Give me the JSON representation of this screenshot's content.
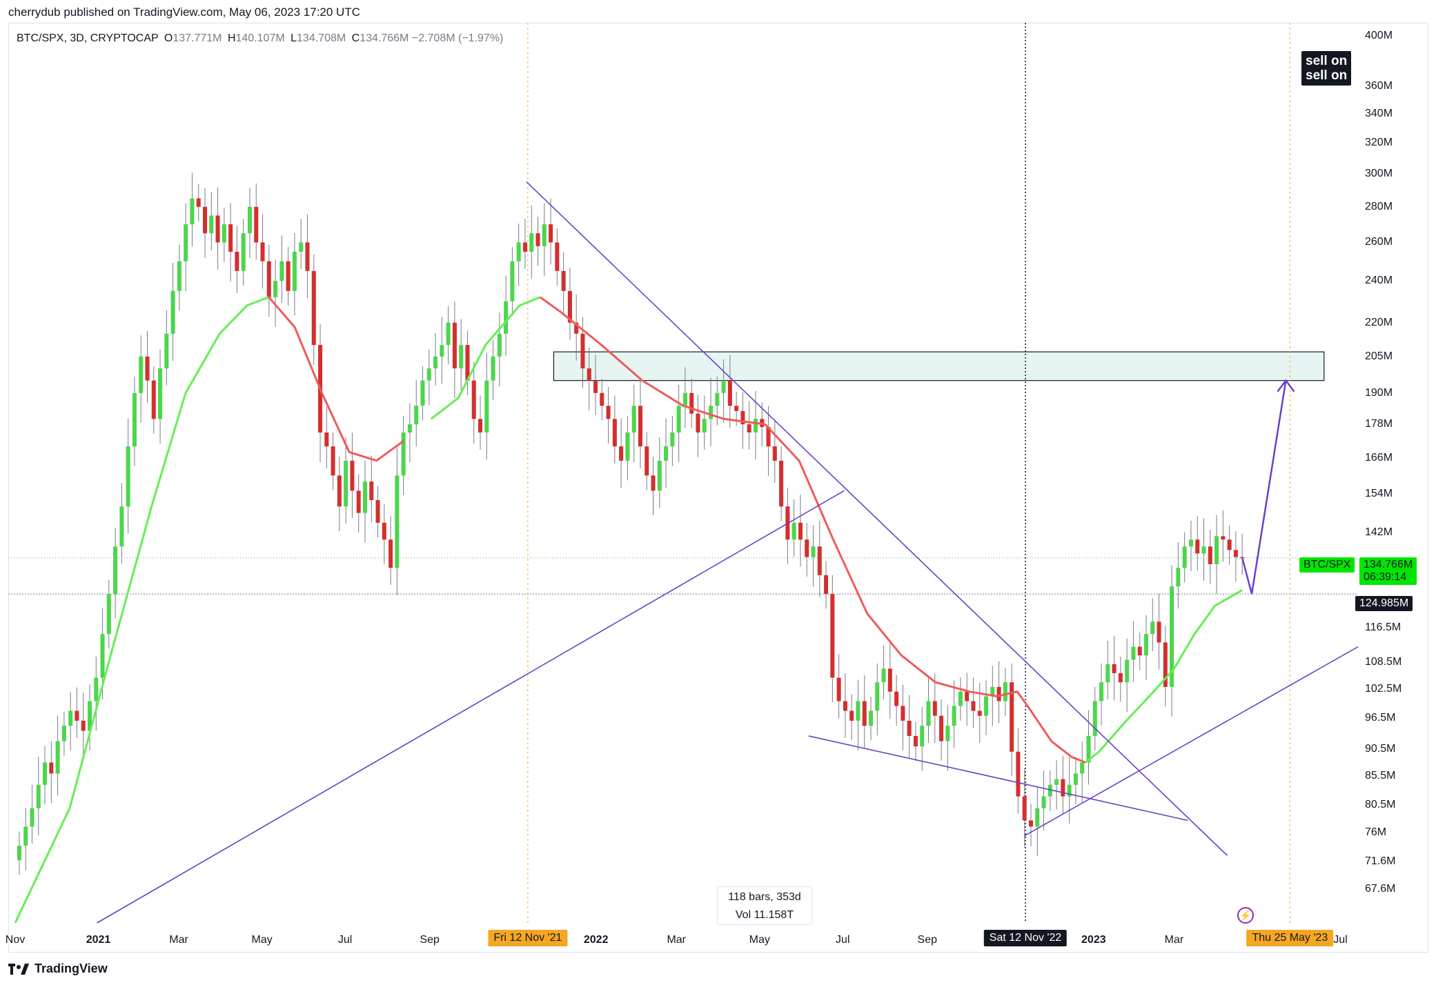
{
  "header": {
    "publisher": "cherrydub published on TradingView.com, May 06, 2023 17:20 UTC"
  },
  "legend": {
    "symbol": "BTC/SPX, 3D, CRYPTOCAP",
    "o_label": "O",
    "o_value": "137.771M",
    "h_label": "H",
    "h_value": "140.107M",
    "l_label": "L",
    "l_value": "134.708M",
    "c_label": "C",
    "c_value": "134.766M",
    "change": "−2.708M (−1.97%)"
  },
  "badges": {
    "sell_on_1": "sell on",
    "sell_on_2": "sell on"
  },
  "price_tags": {
    "symbol_label": "BTC/SPX",
    "last_price": "134.766M",
    "countdown": "06:39:14",
    "crosshair_price": "124.985M"
  },
  "stats": {
    "bars": "118 bars, 353d",
    "volume": "Vol 11.158T"
  },
  "footer": {
    "brand": "TradingView"
  },
  "colors": {
    "up": "#4cd64c",
    "down": "#d32f2f",
    "ema_down": "#f05a5a",
    "ema_up": "#66ee55",
    "trendline": "#6a3fc8",
    "zone_fill": "#e6f5f1",
    "orange": "#f5a623"
  },
  "chart_data": {
    "type": "candlestick",
    "symbol": "BTC/SPX",
    "interval": "3D",
    "scale": "log",
    "unit": "M",
    "y_range": [
      63,
      405
    ],
    "y_ticks": [
      {
        "value": 400,
        "label": "400M"
      },
      {
        "value": 360,
        "label": "360M"
      },
      {
        "value": 340,
        "label": "340M"
      },
      {
        "value": 320,
        "label": "320M"
      },
      {
        "value": 300,
        "label": "300M"
      },
      {
        "value": 280,
        "label": "280M"
      },
      {
        "value": 260,
        "label": "260M"
      },
      {
        "value": 240,
        "label": "240M"
      },
      {
        "value": 220,
        "label": "220M"
      },
      {
        "value": 205,
        "label": "205M"
      },
      {
        "value": 190,
        "label": "190M"
      },
      {
        "value": 178,
        "label": "178M"
      },
      {
        "value": 166,
        "label": "166M"
      },
      {
        "value": 154,
        "label": "154M"
      },
      {
        "value": 142,
        "label": "142M"
      },
      {
        "value": 116.5,
        "label": "116.5M"
      },
      {
        "value": 108.5,
        "label": "108.5M"
      },
      {
        "value": 102.5,
        "label": "102.5M"
      },
      {
        "value": 96.5,
        "label": "96.5M"
      },
      {
        "value": 90.5,
        "label": "90.5M"
      },
      {
        "value": 85.5,
        "label": "85.5M"
      },
      {
        "value": 80.5,
        "label": "80.5M"
      },
      {
        "value": 76,
        "label": "76M"
      },
      {
        "value": 71.6,
        "label": "71.6M"
      },
      {
        "value": 67.6,
        "label": "67.6M"
      }
    ],
    "x_range_days": [
      0,
      990
    ],
    "x_origin_date": "2020-11-01",
    "x_ticks": [
      {
        "day": 0,
        "label": "Nov",
        "bold": false
      },
      {
        "day": 61,
        "label": "2021",
        "bold": true
      },
      {
        "day": 120,
        "label": "Mar",
        "bold": false
      },
      {
        "day": 181,
        "label": "May",
        "bold": false
      },
      {
        "day": 242,
        "label": "Jul",
        "bold": false
      },
      {
        "day": 304,
        "label": "Sep",
        "bold": false
      },
      {
        "day": 426,
        "label": "2022",
        "bold": true
      },
      {
        "day": 485,
        "label": "Mar",
        "bold": false
      },
      {
        "day": 546,
        "label": "May",
        "bold": false
      },
      {
        "day": 607,
        "label": "Jul",
        "bold": false
      },
      {
        "day": 669,
        "label": "Sep",
        "bold": false
      },
      {
        "day": 791,
        "label": "2023",
        "bold": true
      },
      {
        "day": 850,
        "label": "Mar",
        "bold": false
      },
      {
        "day": 972,
        "label": "Jul",
        "bold": false
      }
    ],
    "highlighted_dates": [
      {
        "day": 376,
        "label": "Fri 12 Nov '21",
        "style": "orange"
      },
      {
        "day": 741,
        "label": "Sat 12 Nov '22",
        "style": "black"
      },
      {
        "day": 935,
        "label": "Thu 25 May '23",
        "style": "orange"
      }
    ],
    "candles_closes": [
      74,
      77,
      80,
      84,
      88,
      86,
      92,
      95,
      98,
      96,
      94,
      100,
      105,
      115,
      125,
      138,
      150,
      170,
      190,
      205,
      195,
      180,
      200,
      215,
      235,
      250,
      270,
      285,
      280,
      265,
      275,
      260,
      270,
      255,
      245,
      265,
      280,
      260,
      250,
      232,
      240,
      250,
      235,
      255,
      260,
      245,
      210,
      175,
      170,
      160,
      150,
      165,
      155,
      148,
      158,
      152,
      145,
      140,
      132,
      160,
      175,
      178,
      185,
      195,
      200,
      205,
      210,
      220,
      200,
      210,
      195,
      180,
      175,
      195,
      205,
      215,
      230,
      250,
      260,
      255,
      265,
      258,
      270,
      260,
      245,
      235,
      220,
      215,
      200,
      195,
      190,
      185,
      180,
      170,
      165,
      175,
      185,
      170,
      160,
      155,
      165,
      170,
      175,
      185,
      190,
      182,
      175,
      180,
      185,
      190,
      195,
      185,
      183,
      178,
      175,
      180,
      177,
      170,
      165,
      150,
      140,
      145,
      140,
      135,
      138,
      130,
      125,
      105,
      100,
      98,
      96,
      100,
      95,
      98,
      104,
      107,
      102,
      99,
      96,
      93,
      91,
      95,
      100,
      97,
      92,
      95,
      99,
      102,
      100,
      98,
      97,
      101,
      103,
      100,
      104,
      90,
      82,
      78,
      77,
      80,
      82,
      84,
      85,
      82,
      84,
      86,
      88,
      93,
      100,
      104,
      108,
      106,
      104,
      109,
      112,
      110,
      115,
      118,
      113,
      103,
      127,
      132,
      138,
      140,
      136,
      138,
      133,
      141,
      140,
      137,
      135,
      134.766
    ],
    "ema_points": [
      [
        0,
        63
      ],
      [
        40,
        80
      ],
      [
        70,
        110
      ],
      [
        100,
        150
      ],
      [
        125,
        190
      ],
      [
        150,
        215
      ],
      [
        170,
        228
      ],
      [
        186,
        232
      ],
      [
        205,
        218
      ],
      [
        225,
        190
      ],
      [
        245,
        168
      ],
      [
        265,
        165
      ],
      [
        285,
        172
      ],
      [
        305,
        180
      ],
      [
        325,
        188
      ],
      [
        345,
        210
      ],
      [
        370,
        228
      ],
      [
        385,
        232
      ],
      [
        400,
        225
      ],
      [
        430,
        210
      ],
      [
        460,
        195
      ],
      [
        490,
        185
      ],
      [
        520,
        180
      ],
      [
        550,
        178
      ],
      [
        575,
        165
      ],
      [
        600,
        140
      ],
      [
        625,
        120
      ],
      [
        650,
        110
      ],
      [
        675,
        104
      ],
      [
        700,
        102
      ],
      [
        720,
        101
      ],
      [
        735,
        102
      ],
      [
        745,
        98
      ],
      [
        760,
        92
      ],
      [
        775,
        89
      ],
      [
        785,
        88
      ],
      [
        795,
        90
      ],
      [
        815,
        96
      ],
      [
        835,
        102
      ],
      [
        850,
        107
      ],
      [
        865,
        115
      ],
      [
        880,
        122
      ],
      [
        900,
        126
      ]
    ],
    "ema_color_switch_day": 785,
    "forecast_path": [
      [
        900,
        134.8
      ],
      [
        907,
        125
      ],
      [
        932,
        195
      ]
    ],
    "resistance_zone": {
      "from_day": 395,
      "to_day": 960,
      "low": 195,
      "high": 207
    },
    "trendlines": [
      {
        "from": [
          375,
          295
        ],
        "to": [
          889,
          72.5
        ]
      },
      {
        "from": [
          60,
          63
        ],
        "to": [
          608,
          155
        ]
      },
      {
        "from": [
          582,
          93
        ],
        "to": [
          860,
          78
        ]
      },
      {
        "from": [
          740,
          75.5
        ],
        "to": [
          985,
          112
        ]
      }
    ],
    "horizontal_lines": [
      {
        "value": 134.766,
        "style": "dotted-green"
      },
      {
        "value": 124.985,
        "style": "dotted-gray"
      }
    ]
  }
}
